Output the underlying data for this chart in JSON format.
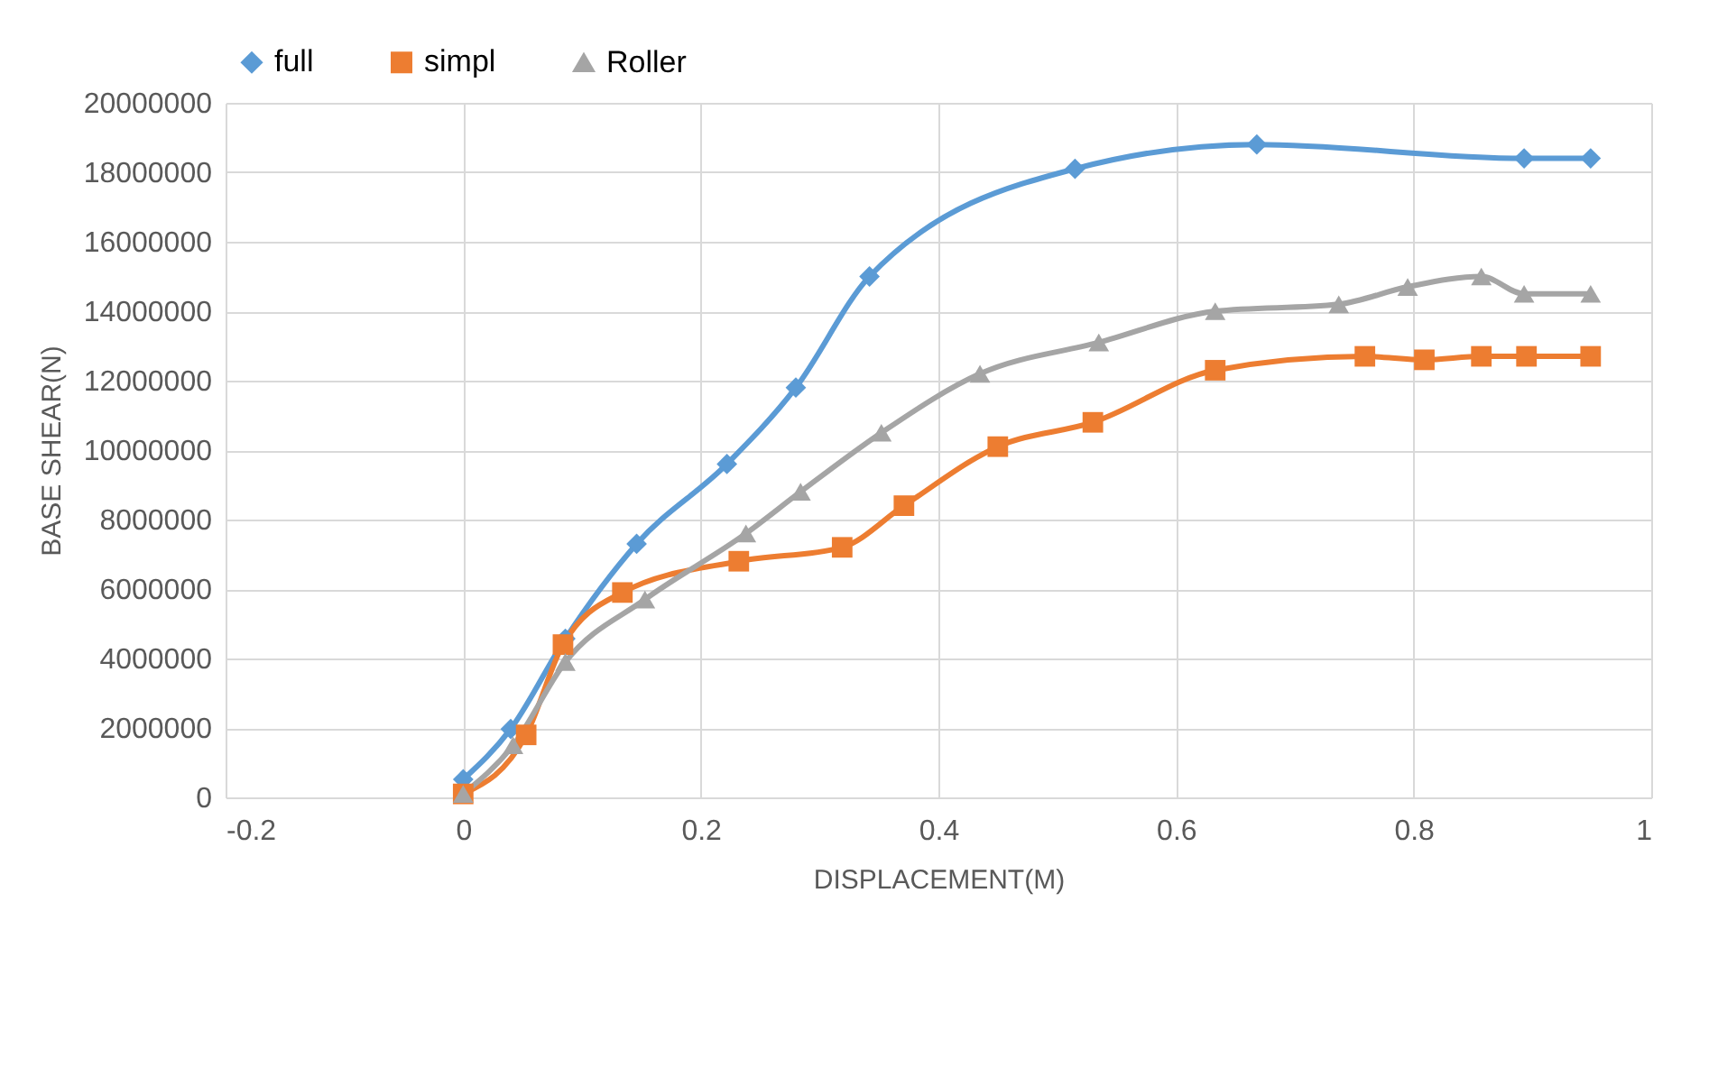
{
  "chart_data": {
    "type": "line",
    "xlabel": "DISPLACEMENT(M)",
    "ylabel": "BASE SHEAR(N)",
    "xlim": [
      -0.2,
      1
    ],
    "xticks": [
      -0.2,
      0,
      0.2,
      0.4,
      0.6,
      0.8,
      1
    ],
    "ylim": [
      0,
      20000000
    ],
    "yticks": [
      0,
      2000000,
      4000000,
      6000000,
      8000000,
      10000000,
      12000000,
      14000000,
      16000000,
      18000000,
      20000000
    ],
    "grid": true,
    "legend": "top",
    "line_style": "solid",
    "series": [
      {
        "name": "full",
        "color": "#5b9bd5",
        "marker": "diamond",
        "x": [
          0,
          0.04,
          0.086,
          0.146,
          0.222,
          0.28,
          0.342,
          0.515,
          0.668,
          0.893,
          0.949
        ],
        "values": [
          520000,
          1970000,
          4570000,
          7300000,
          9600000,
          11800000,
          15000000,
          18100000,
          18800000,
          18400000,
          18400000
        ]
      },
      {
        "name": "simpl",
        "color": "#ed7d31",
        "marker": "square",
        "x": [
          0,
          0.053,
          0.084,
          0.134,
          0.232,
          0.319,
          0.371,
          0.45,
          0.53,
          0.633,
          0.759,
          0.809,
          0.857,
          0.895,
          0.949
        ],
        "values": [
          100000,
          1800000,
          4400000,
          5900000,
          6800000,
          7200000,
          8400000,
          10100000,
          10800000,
          12300000,
          12700000,
          12600000,
          12700000,
          12700000,
          12700000
        ]
      },
      {
        "name": "Roller",
        "color": "#a5a5a5",
        "marker": "triangle",
        "x": [
          0,
          0.042,
          0.086,
          0.153,
          0.238,
          0.284,
          0.352,
          0.435,
          0.535,
          0.633,
          0.737,
          0.795,
          0.857,
          0.893,
          0.949
        ],
        "values": [
          100000,
          1500000,
          3900000,
          5700000,
          7600000,
          8800000,
          10500000,
          12200000,
          13100000,
          14000000,
          14200000,
          14700000,
          15000000,
          14500000,
          14500000
        ]
      }
    ]
  }
}
